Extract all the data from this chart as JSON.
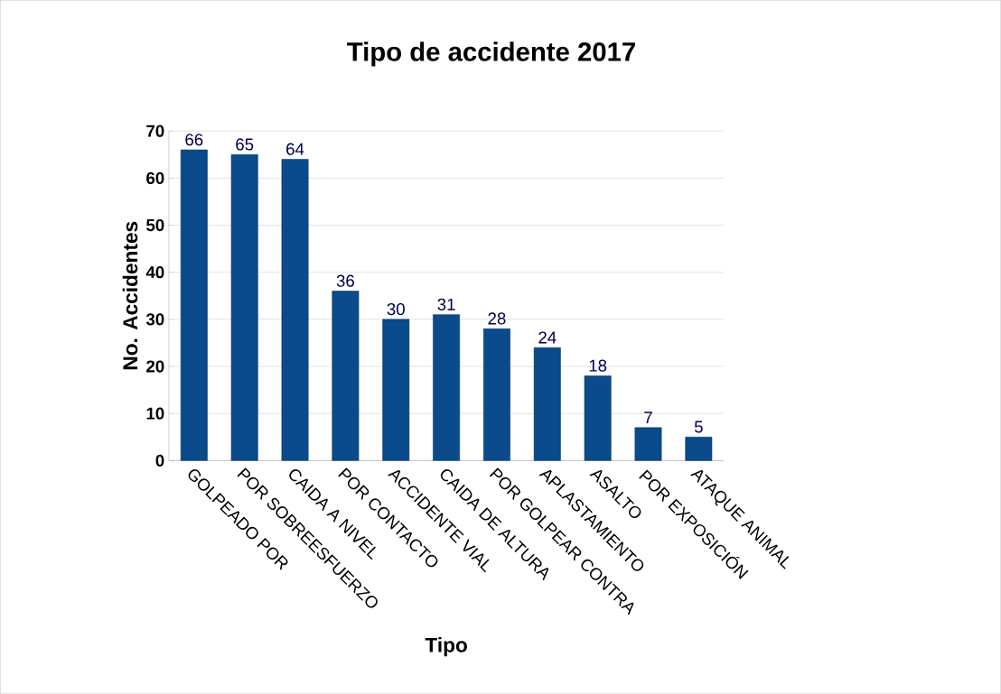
{
  "chart_data": {
    "type": "bar",
    "title": "Tipo de accidente 2017",
    "xlabel": "Tipo",
    "ylabel": "No. Accidentes",
    "categories": [
      "GOLPEADO POR",
      "POR SOBREESFUERZO",
      "CAIDA A NIVEL",
      "POR CONTACTO",
      "ACCIDENTE VIAL",
      "CAIDA DE ALTURA",
      "POR GOLPEAR CONTRA",
      "APLASTAMIENTO",
      "ASALTO",
      "POR EXPOSICIÓN",
      "ATAQUE ANIMAL"
    ],
    "values": [
      66,
      65,
      64,
      36,
      30,
      31,
      28,
      24,
      18,
      7,
      5
    ],
    "color": "#0b4a8b",
    "ylim": [
      0,
      70
    ],
    "yticks": [
      0,
      10,
      20,
      30,
      40,
      50,
      60,
      70
    ],
    "grid": "y",
    "data_labels": true
  }
}
